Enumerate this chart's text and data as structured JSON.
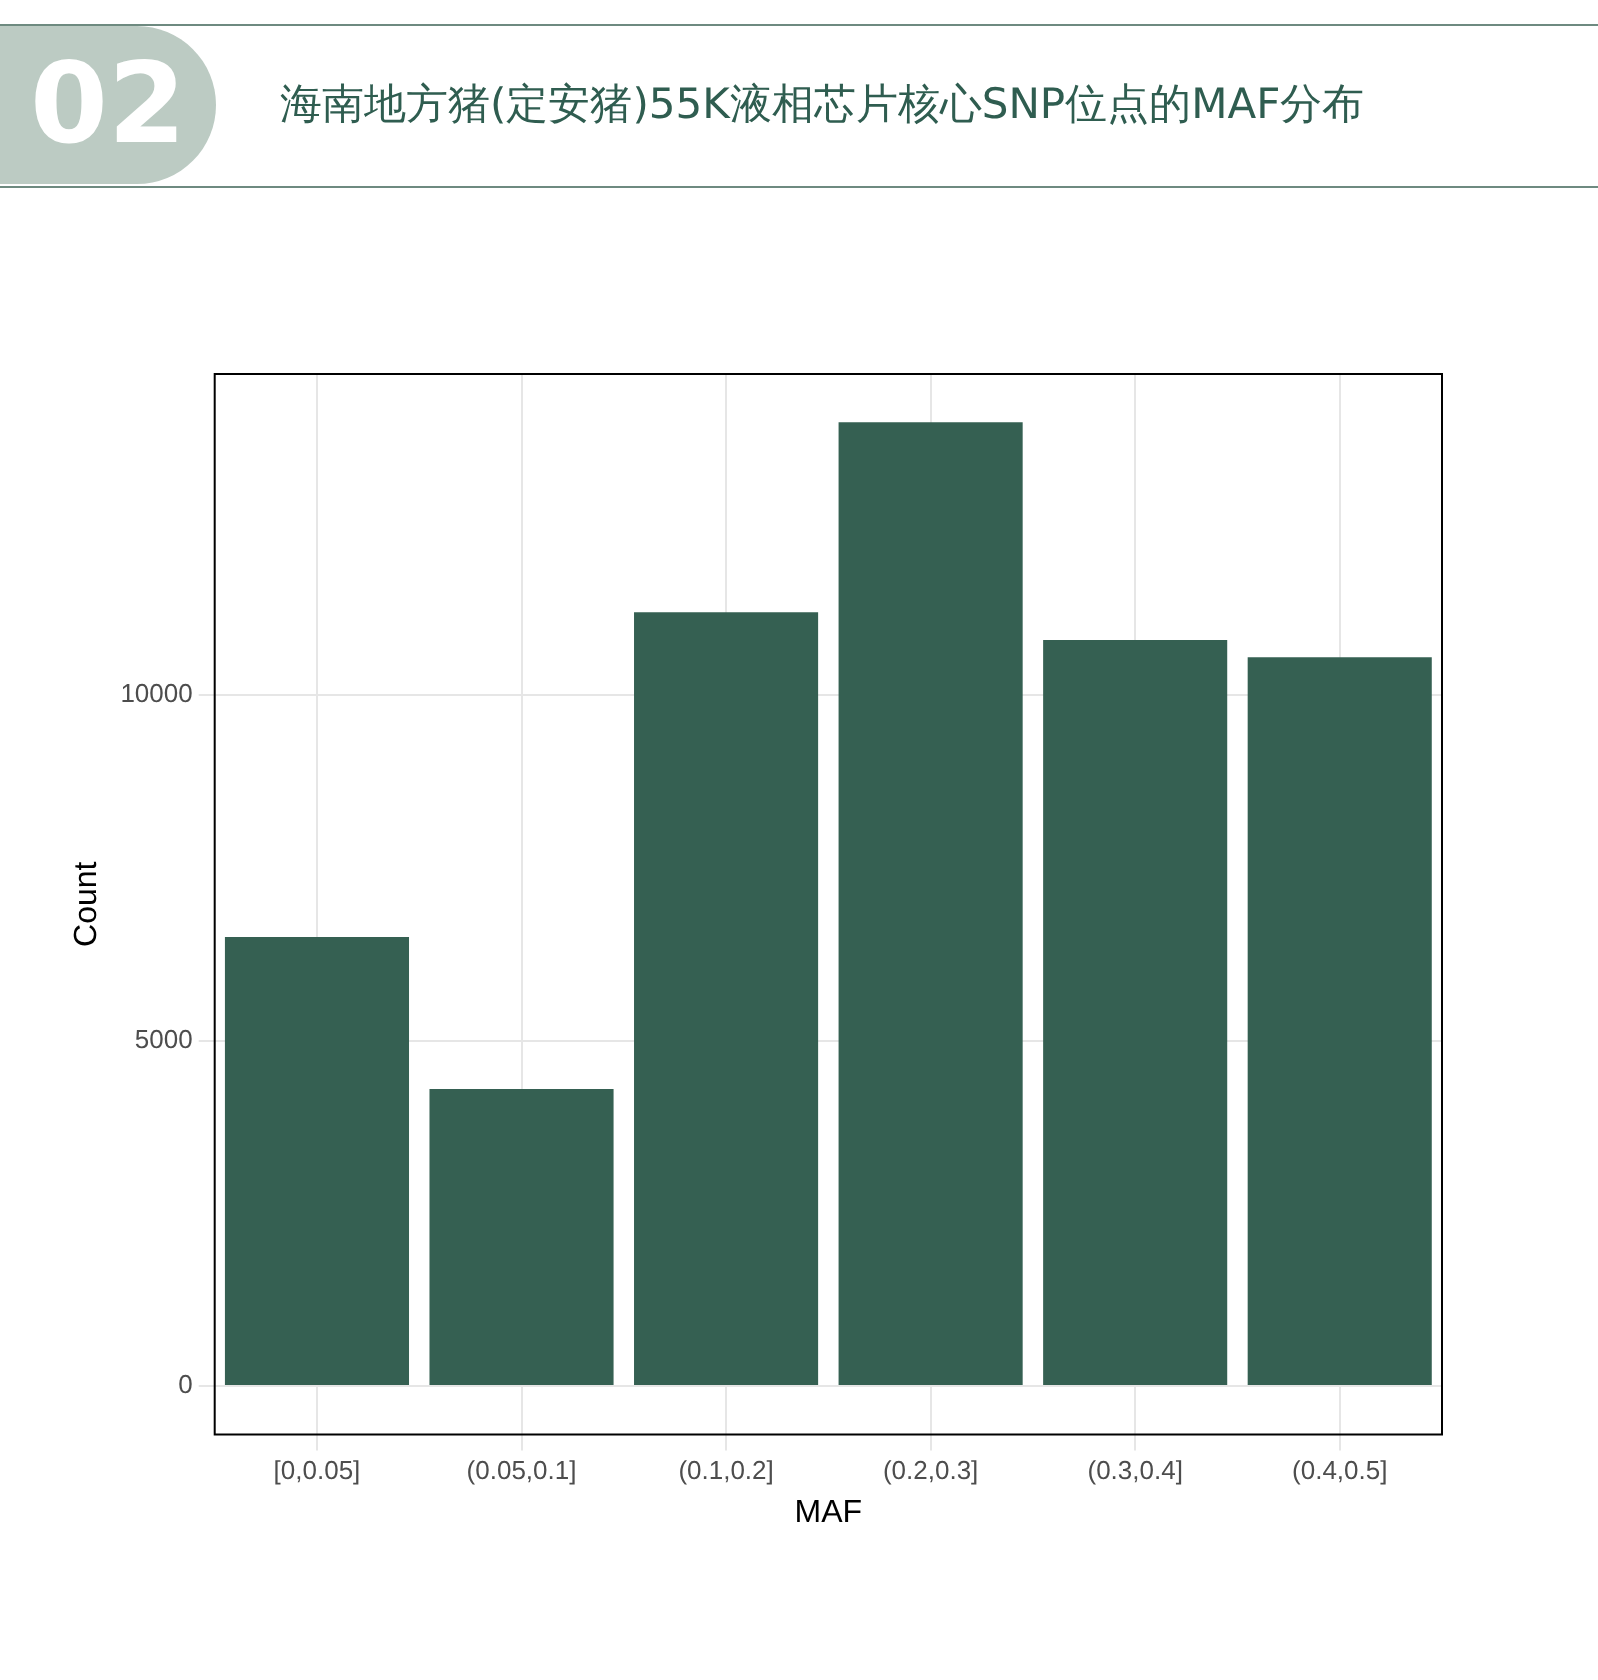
{
  "chart_data": {
    "type": "bar",
    "title": "海南地方猪(定安猪)55K液相芯片核心SNP位点的MAF分布",
    "annotations": [
      "02"
    ],
    "xlabel": "MAF",
    "ylabel": "Count",
    "categories": [
      "[0,0.05]",
      "(0.05,0.1]",
      "(0.1,0.2]",
      "(0.2,0.3]",
      "(0.3,0.4]",
      "(0.4,0.5]"
    ],
    "values": [
      6500,
      4300,
      11200,
      13950,
      10800,
      10550
    ],
    "color": "#356052",
    "ylim": [
      -700,
      14650
    ],
    "yticks": [
      0,
      5000,
      10000
    ],
    "grid": true,
    "legend": false
  }
}
